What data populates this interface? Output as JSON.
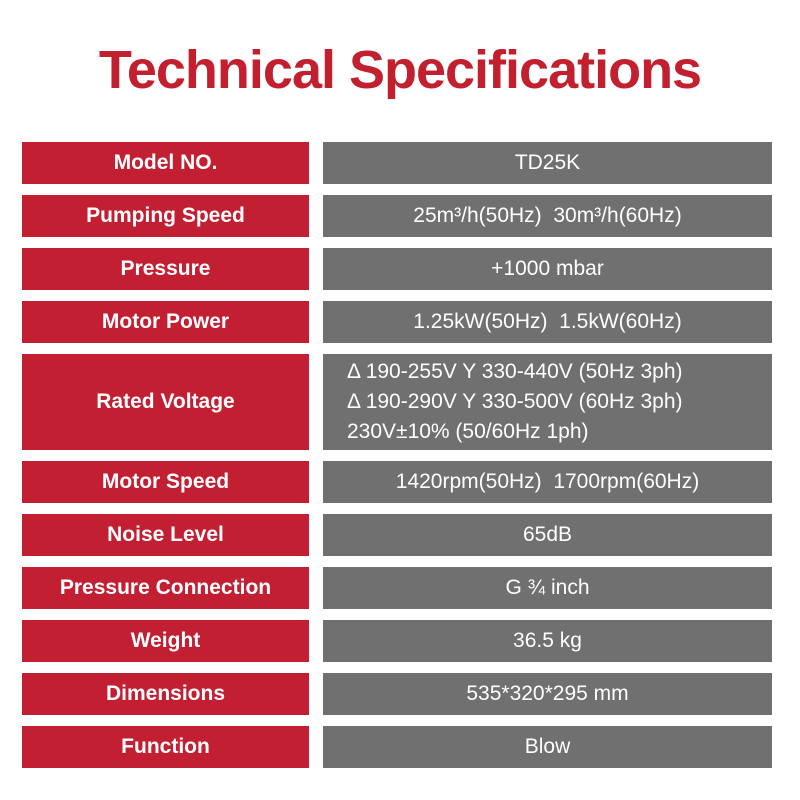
{
  "title": "Technical Specifications",
  "colors": {
    "title_red": "#c2202f",
    "label_bg_red": "#c31f33",
    "value_bg_gray": "#707070",
    "text_white": "#ffffff",
    "page_bg": "#ffffff"
  },
  "table": {
    "rows": [
      {
        "label": "Model NO.",
        "value": "TD25K"
      },
      {
        "label": "Pumping Speed",
        "value": "25m³/h(50Hz)  30m³/h(60Hz)"
      },
      {
        "label": "Pressure",
        "value": "+1000 mbar"
      },
      {
        "label": "Motor Power",
        "value": "1.25kW(50Hz)  1.5kW(60Hz)"
      },
      {
        "label": "Rated Voltage",
        "value_lines": [
          "Δ 190-255V Y 330-440V (50Hz 3ph)",
          "Δ 190-290V Y 330-500V (60Hz 3ph)",
          "230V±10% (50/60Hz 1ph)"
        ],
        "align": "left",
        "tall": true
      },
      {
        "label": "Motor Speed",
        "value": "1420rpm(50Hz)  1700rpm(60Hz)"
      },
      {
        "label": "Noise Level",
        "value": "65dB"
      },
      {
        "label": "Pressure Connection",
        "value": "G ¾ inch"
      },
      {
        "label": "Weight",
        "value": "36.5 kg"
      },
      {
        "label": "Dimensions",
        "value": "535*320*295 mm"
      },
      {
        "label": "Function",
        "value": "Blow"
      }
    ]
  }
}
